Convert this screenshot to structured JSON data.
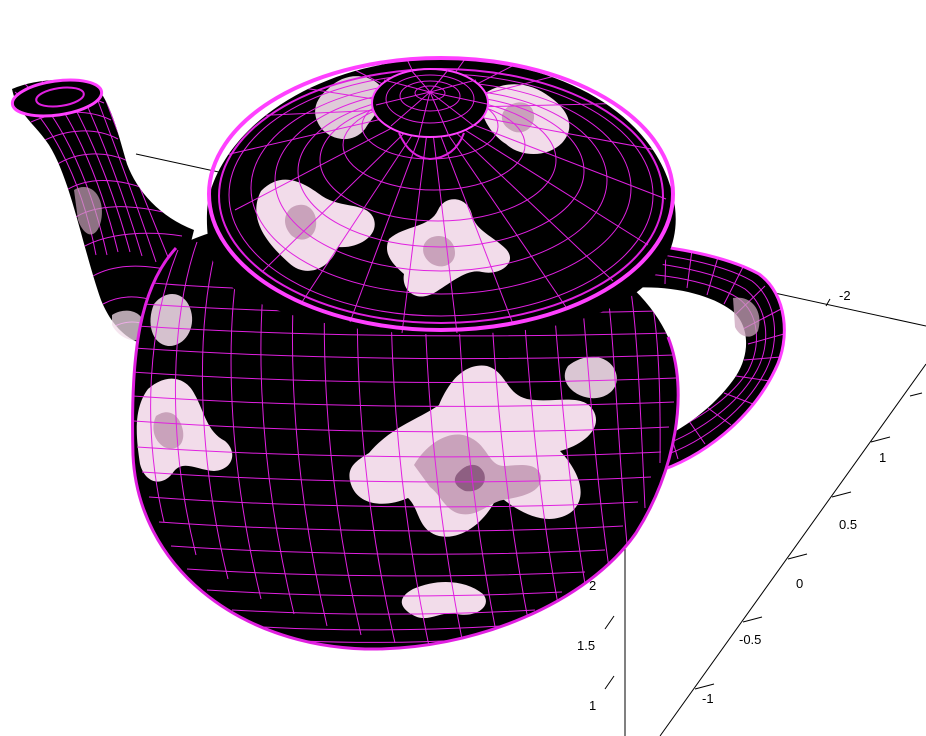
{
  "colors": {
    "background": "#ffffff",
    "surface": "#000000",
    "mesh": "#e020e0",
    "mesh_bright": "#ff40ff",
    "fractal_light": "#f2dcea",
    "fractal_mid": "#c9a2bb",
    "fractal_dark": "#8e5f82",
    "axis": "#000000"
  },
  "axes": {
    "upper_tick": "-2",
    "right_ticks": [
      "1",
      "0.5",
      "0",
      "-0.5",
      "-1"
    ],
    "vertical_ticks": [
      "2",
      "1.5",
      "1"
    ]
  }
}
